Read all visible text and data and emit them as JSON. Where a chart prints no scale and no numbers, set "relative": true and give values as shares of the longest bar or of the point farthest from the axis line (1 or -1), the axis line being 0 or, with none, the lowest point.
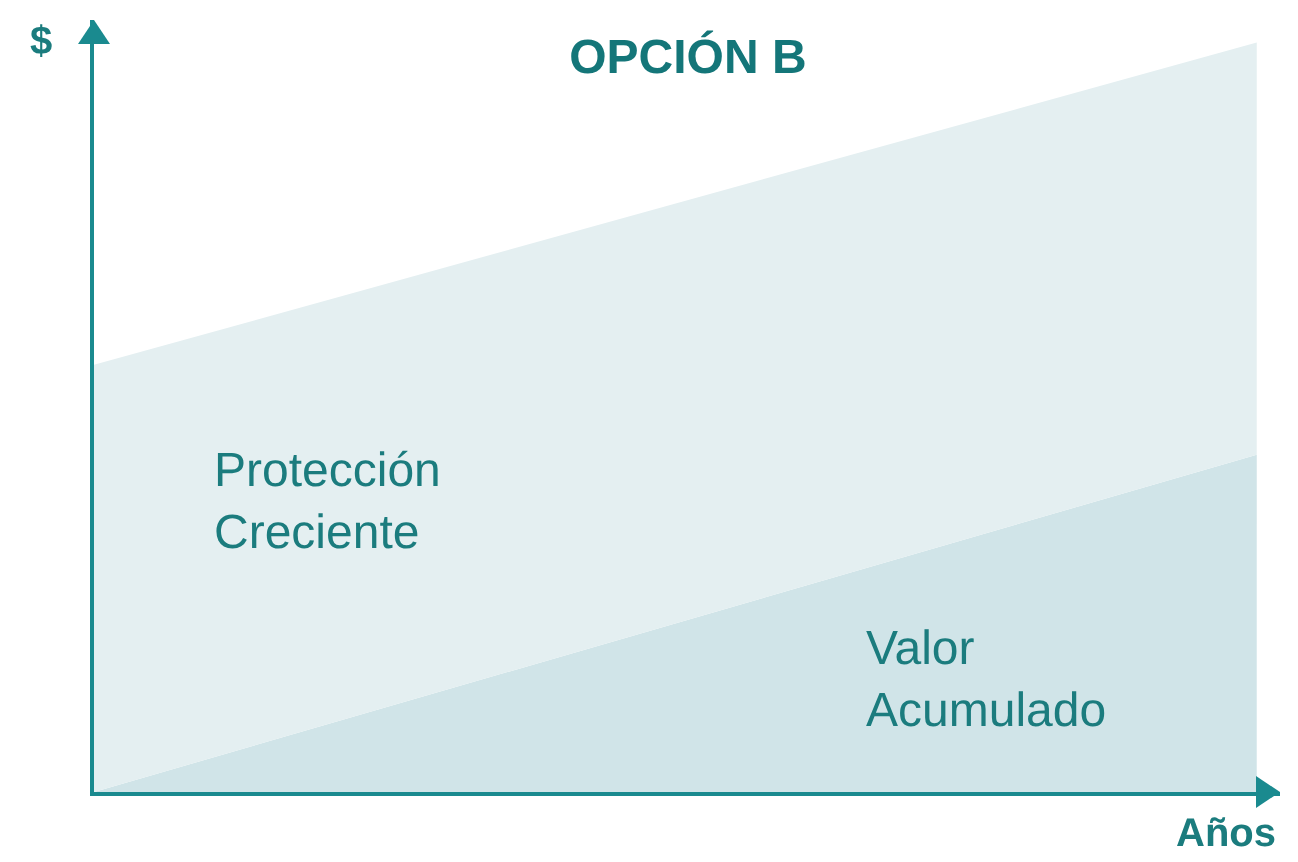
{
  "chart_data": {
    "type": "area",
    "title": "OPCIÓN B",
    "xlabel": "Años",
    "ylabel": "$",
    "relative": true,
    "stacked": true,
    "categories": [
      null,
      null
    ],
    "legend": false,
    "grid": false,
    "series": [
      {
        "name": "Valor Acumulado",
        "color": "#d0e4e8",
        "values": [
          0,
          0.45
        ]
      },
      {
        "name": "Protección Creciente",
        "color": "#e4eff1",
        "values": [
          0.57,
          0.55
        ]
      }
    ]
  }
}
